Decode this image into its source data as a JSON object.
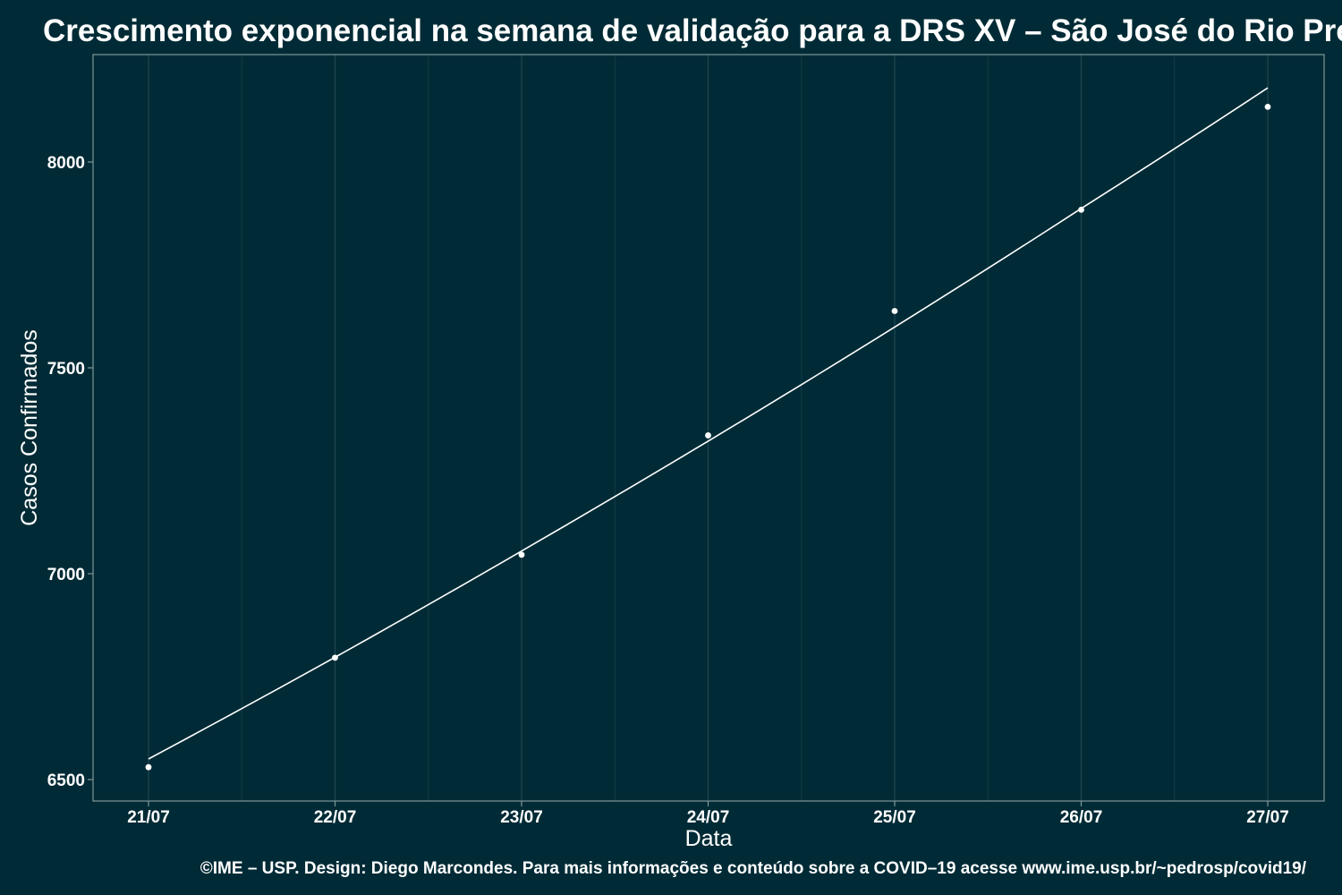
{
  "chart_data": {
    "type": "scatter",
    "title": "Crescimento exponencial na semana de validação para a DRS XV – São José do Rio Preto",
    "xlabel": "Data",
    "ylabel": "Casos Confirmados",
    "caption": "©IME – USP. Design: Diego Marcondes. Para mais informações e conteúdo sobre a COVID–19 acesse www.ime.usp.br/~pedrosp/covid19/",
    "categories": [
      "21/07",
      "22/07",
      "23/07",
      "24/07",
      "25/07",
      "26/07",
      "27/07"
    ],
    "points": [
      {
        "x": "21/07",
        "y": 6530
      },
      {
        "x": "22/07",
        "y": 6796
      },
      {
        "x": "23/07",
        "y": 7046
      },
      {
        "x": "24/07",
        "y": 7336
      },
      {
        "x": "25/07",
        "y": 7638
      },
      {
        "x": "26/07",
        "y": 7884
      },
      {
        "x": "27/07",
        "y": 8134
      }
    ],
    "fit_line": {
      "type": "exponential",
      "values": [
        6550,
        6797,
        7055,
        7322,
        7599,
        7887,
        8180
      ]
    },
    "yticks": [
      6500,
      7000,
      7500,
      8000
    ],
    "ylim": [
      6450,
      8265
    ],
    "grid": true,
    "legend": "none",
    "colors": {
      "background": "#002b36",
      "panel_border": "#7f9898",
      "grid_major": "#1f4650",
      "grid_minor": "#123c46",
      "points": "#ffffff",
      "line": "#ffffff",
      "text": "#ffffff"
    }
  }
}
